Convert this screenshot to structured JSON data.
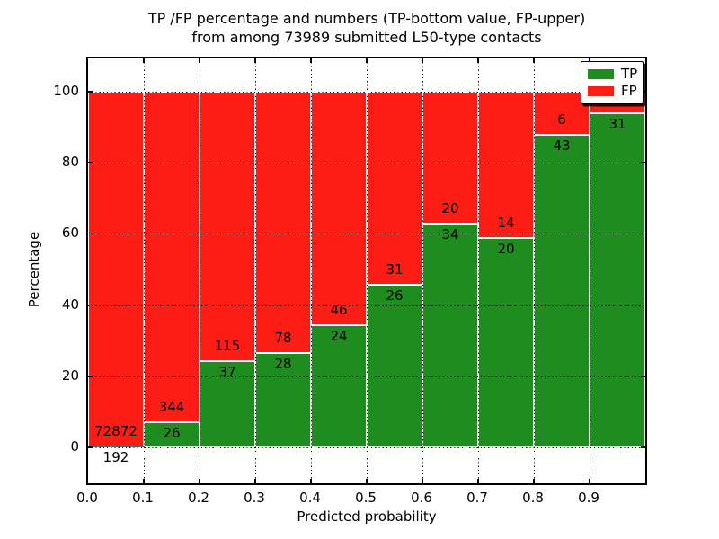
{
  "figure": {
    "title_line1": "TP /FP percentage and numbers (TP-bottom value, FP-upper)",
    "title_line2": "from among 73989 submitted L50-type contacts",
    "xlabel": "Predicted probability",
    "ylabel": "Percentage"
  },
  "legend": {
    "items": [
      {
        "label": "TP",
        "color": "#1f8c1f"
      },
      {
        "label": "FP",
        "color": "#fd1d15"
      }
    ]
  },
  "chart_data": {
    "type": "bar",
    "stacked": true,
    "normalized_to_percent": true,
    "title": "TP /FP percentage and numbers (TP-bottom value, FP-upper) from among 73989 submitted L50-type contacts",
    "xlabel": "Predicted probability",
    "ylabel": "Percentage",
    "categories": [
      "0.0-0.1",
      "0.1-0.2",
      "0.2-0.3",
      "0.3-0.4",
      "0.4-0.5",
      "0.5-0.6",
      "0.6-0.7",
      "0.7-0.8",
      "0.8-0.9",
      "0.9-1.0"
    ],
    "x_tick_labels": [
      "0.0",
      "0.1",
      "0.2",
      "0.3",
      "0.4",
      "0.5",
      "0.6",
      "0.7",
      "0.8",
      "0.9"
    ],
    "y_ticks": [
      0,
      20,
      40,
      60,
      80,
      100
    ],
    "xlim": [
      0.0,
      1.0
    ],
    "ylim": [
      -10,
      110
    ],
    "bin_width": 0.1,
    "grid": "dotted",
    "legend_position": "upper right",
    "total_submitted": 73989,
    "series": [
      {
        "name": "TP",
        "color": "#1f8c1f",
        "counts": [
          192,
          26,
          37,
          28,
          24,
          26,
          34,
          20,
          43,
          31
        ]
      },
      {
        "name": "FP",
        "color": "#fd1d15",
        "counts": [
          72872,
          344,
          115,
          78,
          46,
          31,
          20,
          14,
          6,
          2
        ]
      }
    ]
  }
}
